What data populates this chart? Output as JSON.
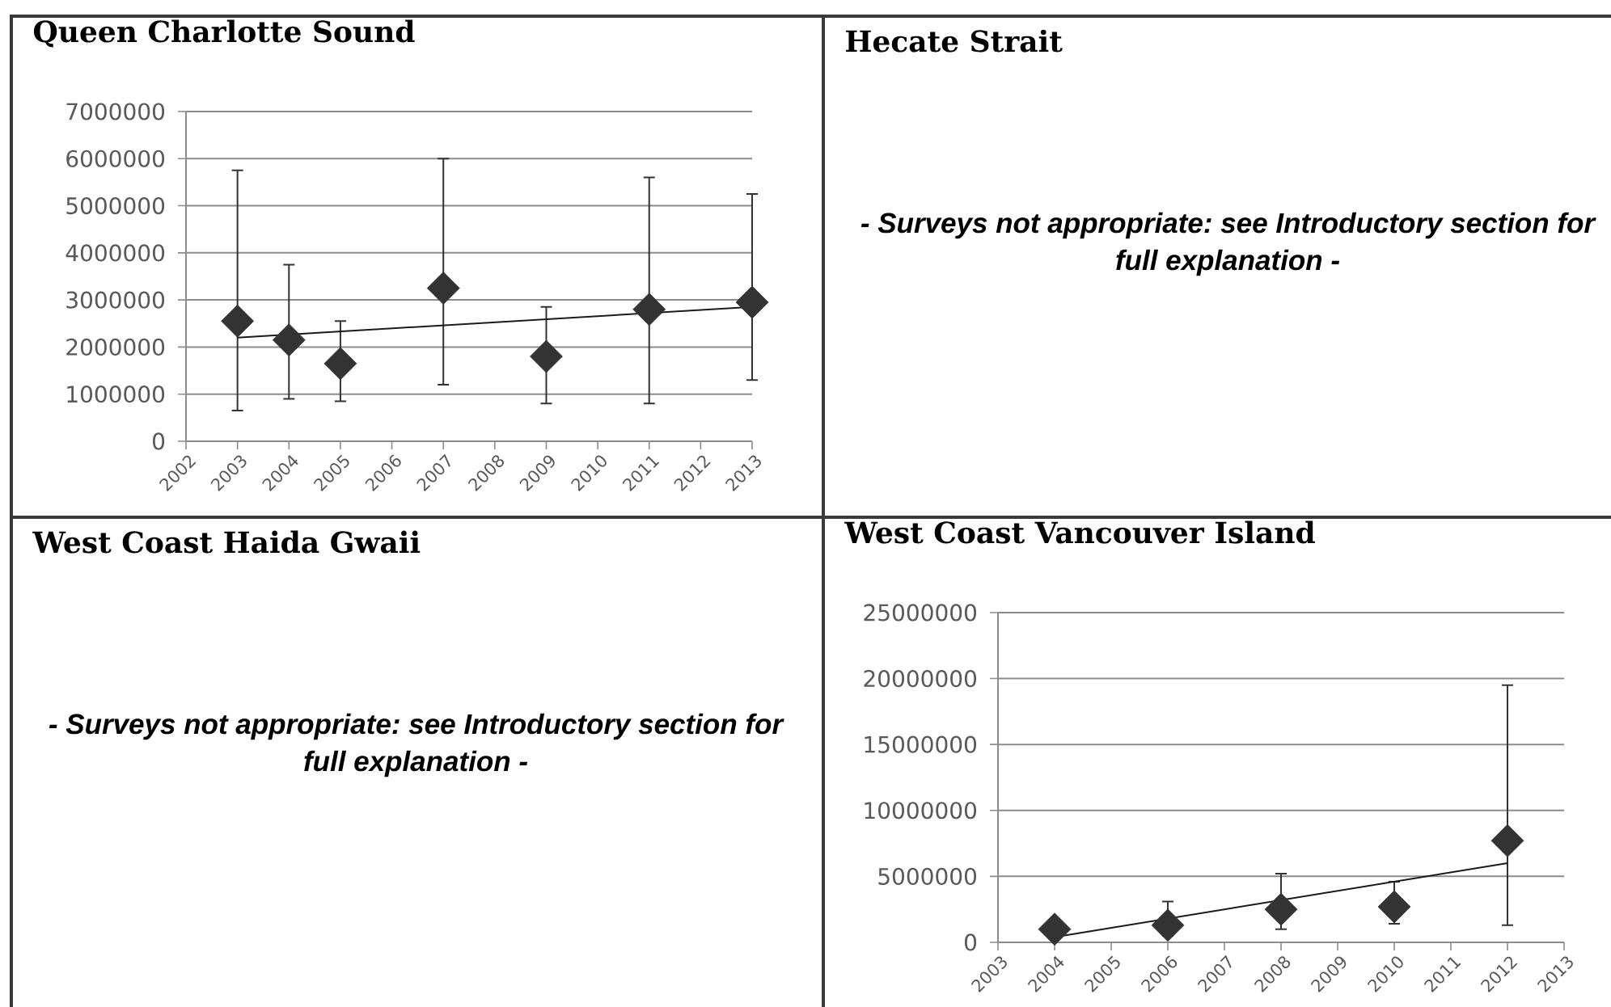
{
  "chart_data": [
    {
      "type": "scatter",
      "title": "Queen Charlotte Sound",
      "x": [
        2003,
        2004,
        2005,
        2007,
        2009,
        2011,
        2013
      ],
      "series": [
        {
          "type": "scatter",
          "color": "#333333",
          "values": [
            2550000,
            2150000,
            1650000,
            3250000,
            1800000,
            2800000,
            2950000
          ],
          "errors": [
            [
              650000,
              5750000
            ],
            [
              900000,
              3750000
            ],
            [
              850000,
              2550000
            ],
            [
              1200000,
              6000000
            ],
            [
              800000,
              2850000
            ],
            [
              800000,
              5600000
            ],
            [
              1300000,
              5250000
            ]
          ]
        },
        {
          "type": "line",
          "color": "#1a1a1a",
          "marker": "none",
          "x": [
            2003,
            2013
          ],
          "values": [
            2200000,
            2850000
          ]
        }
      ],
      "xlim": [
        2002,
        2013
      ],
      "xticks": [
        2002,
        2003,
        2004,
        2005,
        2006,
        2007,
        2008,
        2009,
        2010,
        2011,
        2012,
        2013
      ],
      "ylim": [
        0,
        7000000
      ],
      "yticks": [
        0,
        1000000,
        2000000,
        3000000,
        4000000,
        5000000,
        6000000,
        7000000
      ],
      "grid": "y",
      "marker": "diamond"
    },
    {
      "type": "other",
      "title": "Hecate Strait",
      "annotations": [
        "- Surveys not appropriate: see Introductory section for full explanation -"
      ]
    },
    {
      "type": "other",
      "title": "West Coast Haida Gwaii",
      "annotations": [
        "- Surveys not appropriate: see Introductory section for full explanation -"
      ]
    },
    {
      "type": "scatter",
      "title": "West Coast Vancouver Island",
      "x": [
        2004,
        2006,
        2008,
        2010,
        2012
      ],
      "series": [
        {
          "type": "scatter",
          "color": "#333333",
          "values": [
            1000000,
            1300000,
            2500000,
            2700000,
            7700000
          ],
          "errors": [
            null,
            [
              500000,
              3100000
            ],
            [
              1000000,
              5200000
            ],
            [
              1400000,
              4600000
            ],
            [
              1300000,
              19500000
            ]
          ]
        },
        {
          "type": "line",
          "color": "#1a1a1a",
          "marker": "none",
          "x": [
            2004,
            2012
          ],
          "values": [
            400000,
            6000000
          ]
        }
      ],
      "xlim": [
        2003,
        2013
      ],
      "xticks": [
        2003,
        2004,
        2005,
        2006,
        2007,
        2008,
        2009,
        2010,
        2011,
        2012,
        2013
      ],
      "ylim": [
        0,
        25000000
      ],
      "yticks": [
        0,
        5000000,
        10000000,
        15000000,
        20000000,
        25000000
      ],
      "grid": "y",
      "marker": "diamond"
    }
  ]
}
